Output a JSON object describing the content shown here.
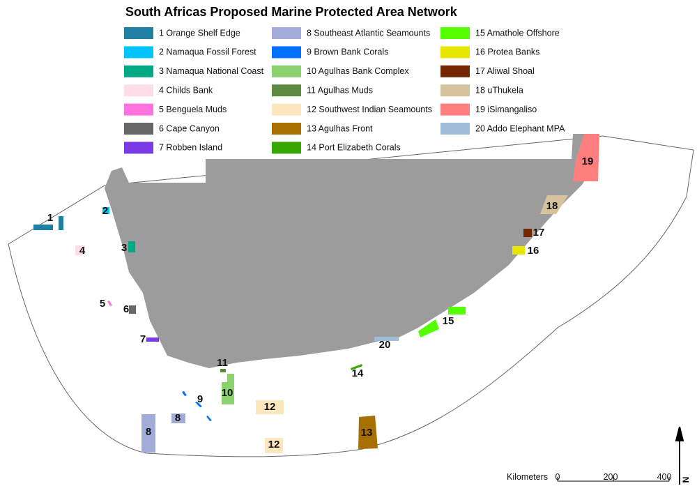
{
  "title": "South Africas Proposed Marine Protected Area Network",
  "legend": [
    {
      "label": "1 Orange Shelf Edge",
      "color": "#1f80a3"
    },
    {
      "label": "2 Namaqua Fossil Forest",
      "color": "#00c5ff"
    },
    {
      "label": "3 Namaqua National Coast",
      "color": "#00a884"
    },
    {
      "label": "4 Childs Bank",
      "color": "#ffdde8"
    },
    {
      "label": "5 Benguela Muds",
      "color": "#ff73df"
    },
    {
      "label": "6 Cape Canyon",
      "color": "#686868"
    },
    {
      "label": "7 Robben Island",
      "color": "#7a3ae6"
    },
    {
      "label": "8 Southeast Atlantic Seamounts",
      "color": "#a3abd9"
    },
    {
      "label": "9 Brown Bank Corals",
      "color": "#0070ff"
    },
    {
      "label": "10 Agulhas Bank Complex",
      "color": "#8bd16e"
    },
    {
      "label": "11 Agulhas Muds",
      "color": "#5b8a40"
    },
    {
      "label": "12 Southwest Indian Seamounts",
      "color": "#fbe6bf"
    },
    {
      "label": "13 Agulhas Front",
      "color": "#a87000"
    },
    {
      "label": "14 Port Elizabeth Corals",
      "color": "#38a800"
    },
    {
      "label": "15 Amathole Offshore",
      "color": "#55ff00"
    },
    {
      "label": "16 Protea Banks",
      "color": "#e6e600"
    },
    {
      "label": "17 Aliwal Shoal",
      "color": "#732600"
    },
    {
      "label": "18 uThukela",
      "color": "#d7c29e"
    },
    {
      "label": "19 iSimangaliso",
      "color": "#ff7f7f"
    },
    {
      "label": "20 Addo Elephant MPA",
      "color": "#9fbcd8"
    }
  ],
  "map_labels": [
    "1",
    "2",
    "3",
    "4",
    "5",
    "6",
    "7",
    "8",
    "8",
    "9",
    "10",
    "11",
    "12",
    "12",
    "13",
    "14",
    "15",
    "16",
    "17",
    "18",
    "19",
    "20"
  ],
  "scale": {
    "title": "Kilometers",
    "ticks": [
      "0",
      "200",
      "400"
    ]
  },
  "north": "N"
}
